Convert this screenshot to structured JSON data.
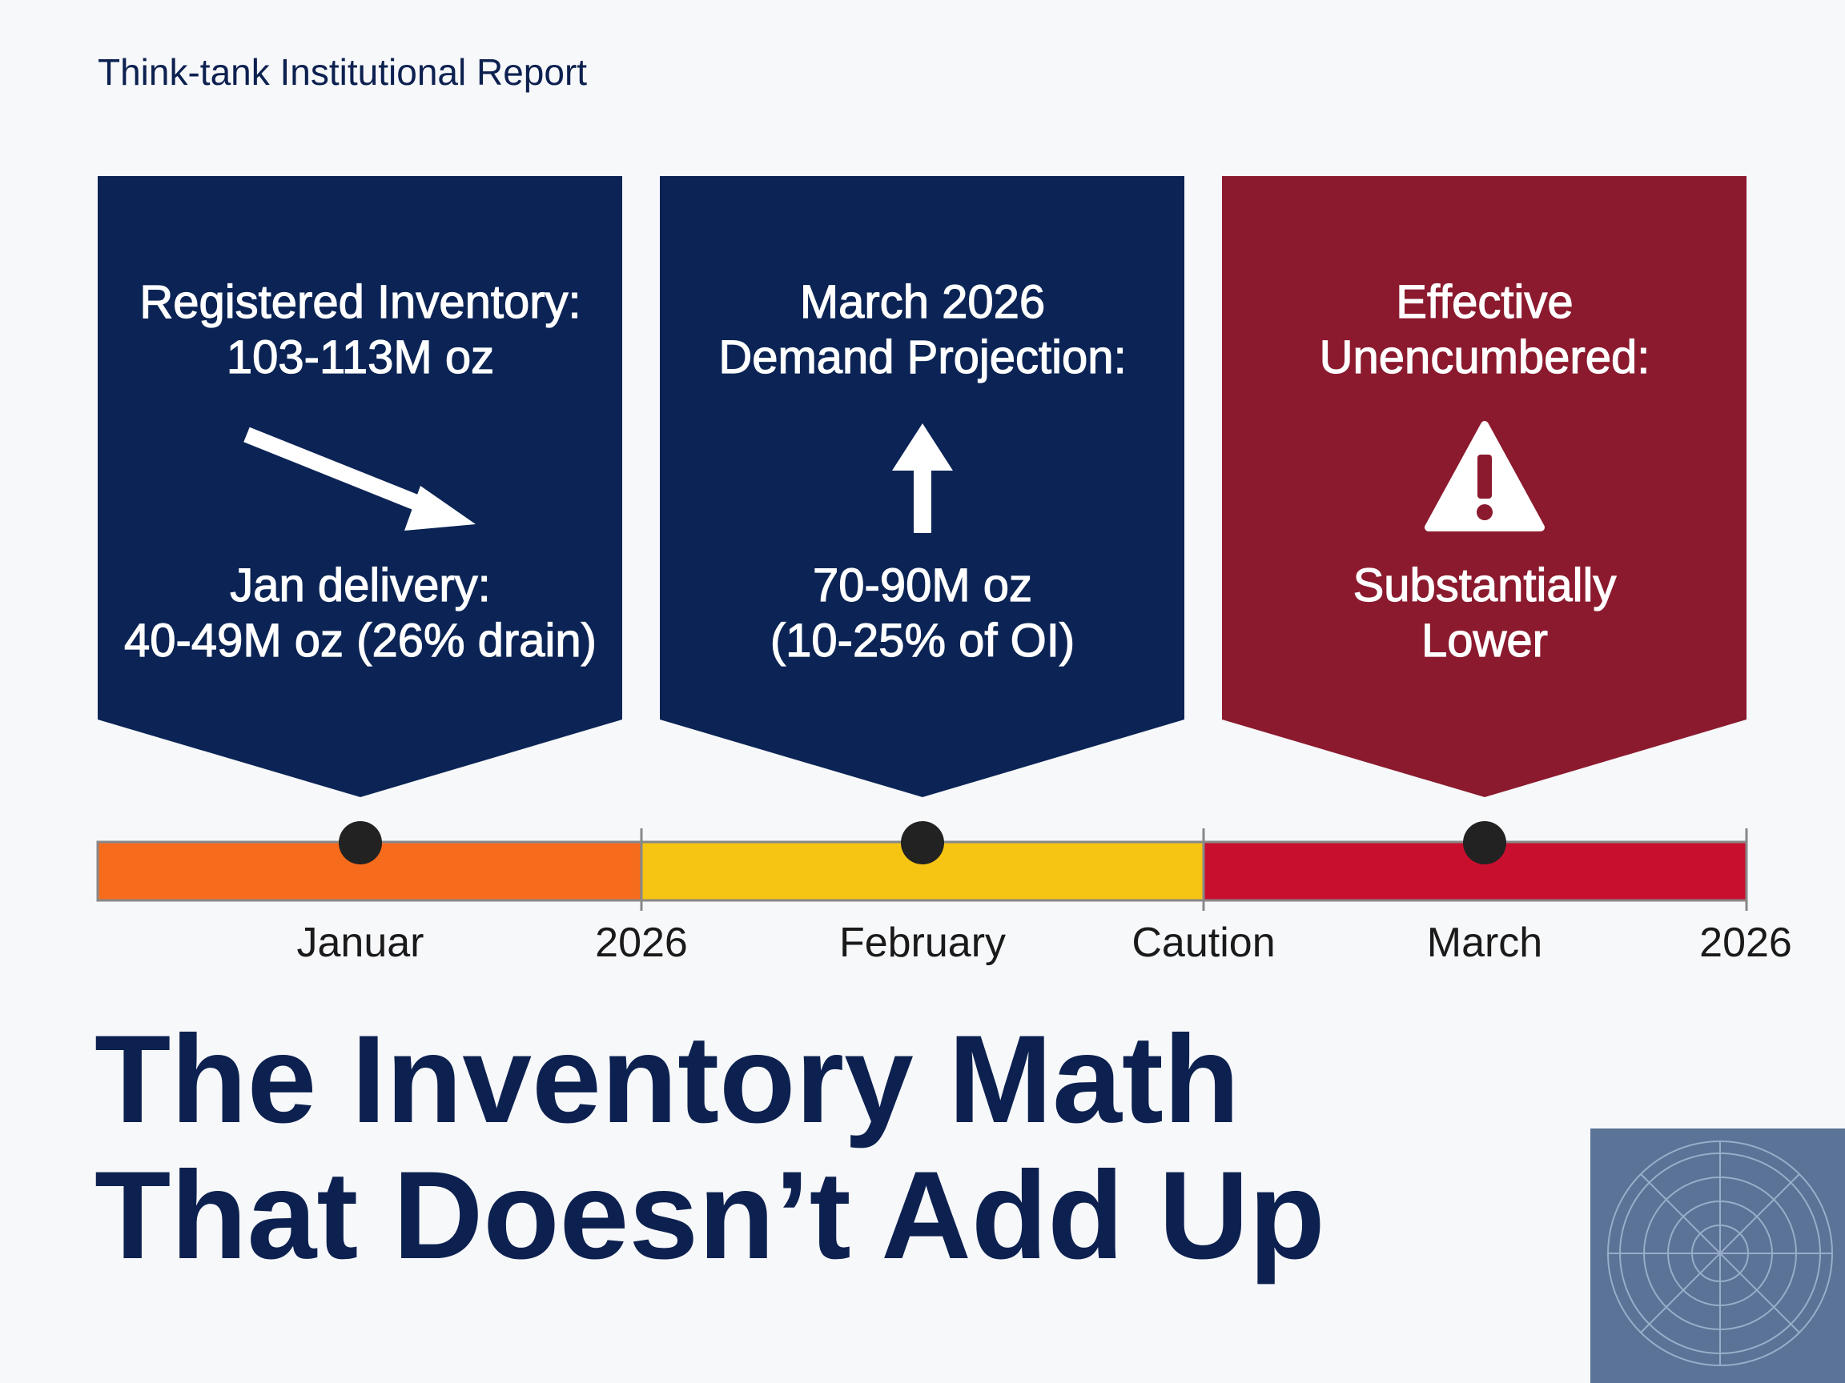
{
  "header": {
    "label": "Think-tank Institutional Report"
  },
  "panels": [
    {
      "title_lines": [
        "Registered Inventory:",
        "103-113M oz"
      ],
      "detail_lines": [
        "Jan delivery:",
        "40-49M oz (26% drain)"
      ]
    },
    {
      "title_lines": [
        "March 2026",
        "Demand Projection:"
      ],
      "detail_lines": [
        "70-90M oz",
        "(10-25% of OI)"
      ]
    },
    {
      "title_lines": [
        "Effective",
        "Unencumbered:"
      ],
      "detail_lines": [
        "Substantially",
        "Lower"
      ]
    }
  ],
  "timeline": {
    "labels": [
      "Januar",
      "2026",
      "February",
      "Caution",
      "March",
      "2026"
    ]
  },
  "headline": {
    "lines": [
      "The Inventory Math",
      "That Doesn’t Add Up"
    ]
  }
}
